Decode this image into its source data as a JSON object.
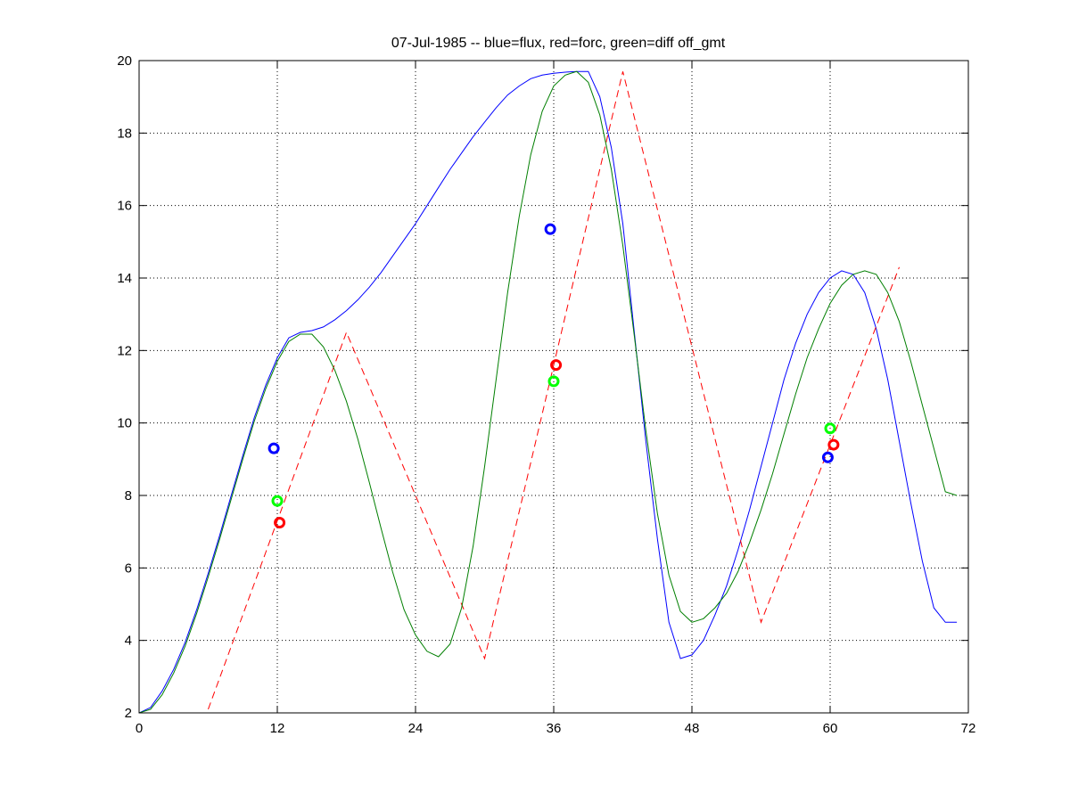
{
  "chart_data": {
    "type": "line",
    "title": "07-Jul-1985 -- blue=flux, red=forc, green=diff off_gmt",
    "xlabel": "",
    "ylabel": "",
    "xlim": [
      0,
      72
    ],
    "ylim": [
      2,
      20
    ],
    "xticks": [
      0,
      12,
      24,
      36,
      48,
      60,
      72
    ],
    "yticks": [
      2,
      4,
      6,
      8,
      10,
      12,
      14,
      16,
      18,
      20
    ],
    "grid": true,
    "series": [
      {
        "color": "#0000ff",
        "style": "solid",
        "x": [
          0,
          1,
          2,
          3,
          4,
          5,
          6,
          7,
          8,
          9,
          10,
          11,
          12,
          13,
          14,
          15,
          16,
          17,
          18,
          19,
          20,
          21,
          22,
          23,
          24,
          25,
          26,
          27,
          28,
          29,
          30,
          31,
          32,
          33,
          34,
          35,
          36,
          37,
          38,
          39,
          40,
          41,
          42,
          43,
          44,
          45,
          46,
          47,
          48,
          49,
          50,
          51,
          52,
          53,
          54,
          55,
          56,
          57,
          58,
          59,
          60,
          61,
          62,
          63,
          64,
          65,
          66,
          67,
          68,
          69,
          70,
          71
        ],
        "y": [
          2.0,
          2.15,
          2.6,
          3.2,
          3.95,
          4.85,
          5.85,
          6.9,
          8.0,
          9.1,
          10.15,
          11.05,
          11.8,
          12.35,
          12.5,
          12.55,
          12.65,
          12.85,
          13.1,
          13.4,
          13.75,
          14.15,
          14.6,
          15.05,
          15.5,
          16.0,
          16.5,
          17.0,
          17.45,
          17.9,
          18.3,
          18.7,
          19.05,
          19.3,
          19.5,
          19.6,
          19.65,
          19.68,
          19.7,
          19.7,
          19.0,
          17.6,
          15.5,
          12.5,
          9.5,
          6.8,
          4.5,
          3.5,
          3.6,
          4.0,
          4.7,
          5.5,
          6.5,
          7.6,
          8.8,
          10.0,
          11.2,
          12.2,
          13.0,
          13.6,
          14.0,
          14.2,
          14.1,
          13.6,
          12.6,
          11.2,
          9.5,
          7.8,
          6.2,
          4.9,
          4.5,
          4.5
        ]
      },
      {
        "color": "#ff0000",
        "style": "dashed",
        "x": [
          6,
          18,
          30,
          42,
          54,
          66
        ],
        "y": [
          2.1,
          12.5,
          3.5,
          19.7,
          4.5,
          14.3
        ]
      },
      {
        "color": "#007f00",
        "style": "solid",
        "x": [
          0,
          1,
          2,
          3,
          4,
          5,
          6,
          7,
          8,
          9,
          10,
          11,
          12,
          13,
          14,
          15,
          16,
          17,
          18,
          19,
          20,
          21,
          22,
          23,
          24,
          25,
          26,
          27,
          28,
          29,
          30,
          31,
          32,
          33,
          34,
          35,
          36,
          37,
          38,
          39,
          40,
          41,
          42,
          43,
          44,
          45,
          46,
          47,
          48,
          49,
          50,
          51,
          52,
          53,
          54,
          55,
          56,
          57,
          58,
          59,
          60,
          61,
          62,
          63,
          64,
          65,
          66,
          67,
          68,
          69,
          70,
          71
        ],
        "y": [
          2.0,
          2.1,
          2.5,
          3.1,
          3.85,
          4.75,
          5.75,
          6.8,
          7.9,
          9.0,
          10.05,
          10.95,
          11.7,
          12.25,
          12.45,
          12.45,
          12.1,
          11.45,
          10.6,
          9.55,
          8.35,
          7.1,
          5.9,
          4.85,
          4.15,
          3.7,
          3.55,
          3.9,
          4.9,
          6.6,
          8.8,
          11.2,
          13.6,
          15.7,
          17.4,
          18.6,
          19.3,
          19.6,
          19.7,
          19.4,
          18.5,
          17.0,
          14.9,
          12.4,
          9.8,
          7.5,
          5.8,
          4.8,
          4.5,
          4.6,
          4.9,
          5.3,
          5.9,
          6.7,
          7.6,
          8.6,
          9.7,
          10.8,
          11.8,
          12.6,
          13.3,
          13.8,
          14.1,
          14.2,
          14.1,
          13.6,
          12.8,
          11.7,
          10.5,
          9.3,
          8.1,
          8.0
        ]
      }
    ],
    "markers": [
      {
        "color": "#0000ff",
        "x": 11.7,
        "y": 9.3
      },
      {
        "color": "#00ff00",
        "x": 12.0,
        "y": 7.85
      },
      {
        "color": "#ff0000",
        "x": 12.2,
        "y": 7.25
      },
      {
        "color": "#0000ff",
        "x": 35.7,
        "y": 15.35
      },
      {
        "color": "#ff0000",
        "x": 36.2,
        "y": 11.6
      },
      {
        "color": "#00ff00",
        "x": 36.0,
        "y": 11.15
      },
      {
        "color": "#00ff00",
        "x": 60.0,
        "y": 9.85
      },
      {
        "color": "#ff0000",
        "x": 60.3,
        "y": 9.4
      },
      {
        "color": "#0000ff",
        "x": 59.8,
        "y": 9.05
      }
    ]
  }
}
